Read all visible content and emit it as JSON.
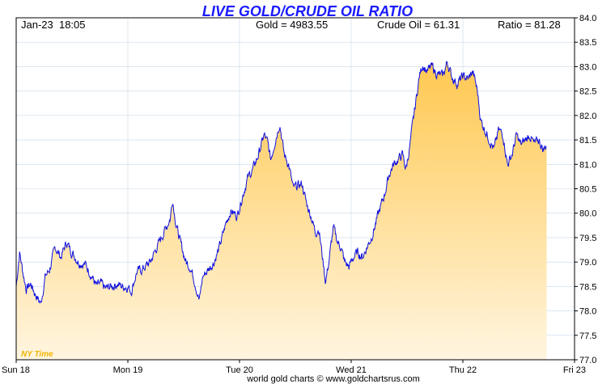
{
  "chart_data": {
    "type": "area",
    "title": "LIVE GOLD/CRUDE OIL RATIO",
    "header": {
      "datetime": "Jan-23  18:05",
      "gold": "Gold = 4983.55",
      "crude": "Crude Oil = 61.31",
      "ratio": "Ratio = 81.28"
    },
    "timezone_label": "NY Time",
    "footer": "world gold charts © www.goldchartsrus.com",
    "ylim": [
      77.0,
      84.0
    ],
    "y_ticks": [
      "77.0",
      "77.5",
      "78.0",
      "78.5",
      "79.0",
      "79.5",
      "80.0",
      "80.5",
      "81.0",
      "81.5",
      "82.0",
      "82.5",
      "83.0",
      "83.5",
      "84.0"
    ],
    "x_ticks": [
      "Sun 18",
      "Mon 19",
      "Tue 20",
      "Wed 21",
      "Thu 22",
      "Fri 23"
    ],
    "x_range_days": [
      0,
      5
    ],
    "grid": true,
    "colors": {
      "line": "#1010e0",
      "fill_top": "#ffc850",
      "fill_bottom": "#fff5e0",
      "grid": "#c8d8e8",
      "title": "#1a1aff"
    },
    "series": [
      {
        "values": [
          [
            0.0,
            78.5
          ],
          [
            0.03,
            79.2
          ],
          [
            0.06,
            78.8
          ],
          [
            0.09,
            78.45
          ],
          [
            0.13,
            78.55
          ],
          [
            0.17,
            78.35
          ],
          [
            0.22,
            78.15
          ],
          [
            0.26,
            78.7
          ],
          [
            0.3,
            78.85
          ],
          [
            0.35,
            79.3
          ],
          [
            0.4,
            79.1
          ],
          [
            0.45,
            79.4
          ],
          [
            0.5,
            79.2
          ],
          [
            0.56,
            79.0
          ],
          [
            0.62,
            78.95
          ],
          [
            0.68,
            78.7
          ],
          [
            0.72,
            78.5
          ],
          [
            0.76,
            78.55
          ],
          [
            0.8,
            78.45
          ],
          [
            0.85,
            78.5
          ],
          [
            0.9,
            78.55
          ],
          [
            0.95,
            78.5
          ],
          [
            1.0,
            78.5
          ],
          [
            1.03,
            78.4
          ],
          [
            1.08,
            78.8
          ],
          [
            1.13,
            78.85
          ],
          [
            1.2,
            79.0
          ],
          [
            1.26,
            79.3
          ],
          [
            1.32,
            79.6
          ],
          [
            1.38,
            79.9
          ],
          [
            1.4,
            80.3
          ],
          [
            1.43,
            79.8
          ],
          [
            1.47,
            79.4
          ],
          [
            1.52,
            79.0
          ],
          [
            1.56,
            78.9
          ],
          [
            1.6,
            78.6
          ],
          [
            1.64,
            78.2
          ],
          [
            1.67,
            78.7
          ],
          [
            1.72,
            78.85
          ],
          [
            1.77,
            79.0
          ],
          [
            1.82,
            79.3
          ],
          [
            1.88,
            79.8
          ],
          [
            1.92,
            80.05
          ],
          [
            1.98,
            79.95
          ],
          [
            2.02,
            80.3
          ],
          [
            2.07,
            80.7
          ],
          [
            2.12,
            80.9
          ],
          [
            2.17,
            81.2
          ],
          [
            2.22,
            81.6
          ],
          [
            2.25,
            81.45
          ],
          [
            2.28,
            81.1
          ],
          [
            2.32,
            81.5
          ],
          [
            2.36,
            81.85
          ],
          [
            2.4,
            81.2
          ],
          [
            2.44,
            81.0
          ],
          [
            2.48,
            80.5
          ],
          [
            2.52,
            80.55
          ],
          [
            2.56,
            80.6
          ],
          [
            2.6,
            80.2
          ],
          [
            2.64,
            79.95
          ],
          [
            2.68,
            79.6
          ],
          [
            2.71,
            79.7
          ],
          [
            2.74,
            79.15
          ],
          [
            2.77,
            78.6
          ],
          [
            2.8,
            79.0
          ],
          [
            2.84,
            79.7
          ],
          [
            2.88,
            79.4
          ],
          [
            2.91,
            79.3
          ],
          [
            2.94,
            79.0
          ],
          [
            2.98,
            78.9
          ],
          [
            3.02,
            79.1
          ],
          [
            3.06,
            79.2
          ],
          [
            3.1,
            79.1
          ],
          [
            3.14,
            79.3
          ],
          [
            3.18,
            79.5
          ],
          [
            3.22,
            79.8
          ],
          [
            3.26,
            80.1
          ],
          [
            3.3,
            80.4
          ],
          [
            3.34,
            80.8
          ],
          [
            3.38,
            81.0
          ],
          [
            3.42,
            81.1
          ],
          [
            3.46,
            81.2
          ],
          [
            3.49,
            80.9
          ],
          [
            3.52,
            81.3
          ],
          [
            3.55,
            81.8
          ],
          [
            3.58,
            82.3
          ],
          [
            3.61,
            82.8
          ],
          [
            3.64,
            83.05
          ],
          [
            3.68,
            82.9
          ],
          [
            3.72,
            83.0
          ],
          [
            3.77,
            82.85
          ],
          [
            3.82,
            82.8
          ],
          [
            3.86,
            83.1
          ],
          [
            3.9,
            82.8
          ],
          [
            3.95,
            82.65
          ],
          [
            4.0,
            82.8
          ],
          [
            4.05,
            82.75
          ],
          [
            4.09,
            82.9
          ],
          [
            4.13,
            82.5
          ],
          [
            4.16,
            81.9
          ],
          [
            4.2,
            81.7
          ],
          [
            4.24,
            81.5
          ],
          [
            4.28,
            81.3
          ],
          [
            4.32,
            81.7
          ],
          [
            4.36,
            81.6
          ],
          [
            4.4,
            81.0
          ],
          [
            4.44,
            81.2
          ],
          [
            4.48,
            81.6
          ],
          [
            4.52,
            81.4
          ],
          [
            4.56,
            81.5
          ],
          [
            4.6,
            81.6
          ],
          [
            4.64,
            81.4
          ],
          [
            4.68,
            81.5
          ],
          [
            4.72,
            81.3
          ],
          [
            4.75,
            81.4
          ]
        ]
      }
    ]
  }
}
